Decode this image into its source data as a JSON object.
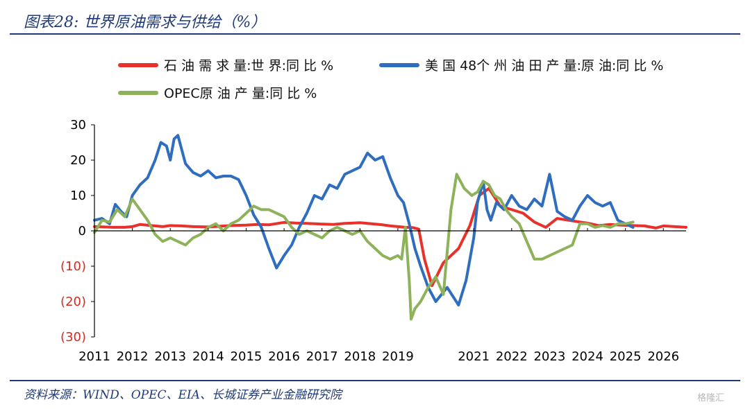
{
  "title": "图表28:  世界原油需求与供给（%）",
  "source": "资料来源：WIND、OPEC、EIA、长城证券产业金融研究院",
  "watermark": "格隆汇",
  "colors": {
    "accent": "#1f3a78",
    "demand": "#e8312a",
    "us_production": "#2f6dbf",
    "opec_production": "#8db25a",
    "negative_tick": "#d42b1f"
  },
  "chart_data": {
    "type": "line",
    "title": "图表28:  世界原油需求与供给（%）",
    "xlabel": "",
    "ylabel": "",
    "ylim": [
      -30,
      30
    ],
    "yticks": [
      {
        "value": 30,
        "label": "30"
      },
      {
        "value": 20,
        "label": "20"
      },
      {
        "value": 10,
        "label": "10"
      },
      {
        "value": 0,
        "label": "0"
      },
      {
        "value": -10,
        "label": "(10)"
      },
      {
        "value": -20,
        "label": "(20)"
      },
      {
        "value": -30,
        "label": "(30)"
      }
    ],
    "xlim": [
      2011.0,
      2026.6
    ],
    "xticks": [
      {
        "value": 2011,
        "label": "2011"
      },
      {
        "value": 2012,
        "label": "2012"
      },
      {
        "value": 2013,
        "label": "2013"
      },
      {
        "value": 2014,
        "label": "2014"
      },
      {
        "value": 2015,
        "label": "2015"
      },
      {
        "value": 2016,
        "label": "2016"
      },
      {
        "value": 2017,
        "label": "2017"
      },
      {
        "value": 2018,
        "label": "2018"
      },
      {
        "value": 2019,
        "label": "2019"
      },
      {
        "value": 2021,
        "label": "2021"
      },
      {
        "value": 2022,
        "label": "2022"
      },
      {
        "value": 2023,
        "label": "2023"
      },
      {
        "value": 2024,
        "label": "2024"
      },
      {
        "value": 2025,
        "label": "2025"
      },
      {
        "value": 2026,
        "label": "2026"
      }
    ],
    "grid": false,
    "legend_position": "top",
    "series": [
      {
        "name": "石 油 需 求 量:世 界:同 比 %",
        "color": "#e8312a",
        "x": [
          2011.0,
          2011.5,
          2011.8,
          2012.0,
          2012.2,
          2012.5,
          2012.8,
          2013.0,
          2013.3,
          2013.6,
          2014.0,
          2014.3,
          2014.6,
          2015.0,
          2015.3,
          2015.6,
          2016.0,
          2016.3,
          2016.6,
          2017.0,
          2017.3,
          2017.6,
          2018.0,
          2018.3,
          2018.6,
          2018.8,
          2019.0,
          2019.2,
          2019.4,
          2019.55,
          2019.7,
          2019.9,
          2020.2,
          2020.6,
          2020.9,
          2021.15,
          2021.4,
          2021.7,
          2022.0,
          2022.3,
          2022.6,
          2022.9,
          2023.2,
          2023.5,
          2023.8,
          2024.0,
          2024.3,
          2024.6,
          2024.9,
          2025.2,
          2025.5,
          2025.8,
          2026.0,
          2026.3,
          2026.6
        ],
        "y": [
          1.2,
          1.0,
          1.0,
          1.2,
          1.8,
          1.5,
          1.2,
          1.5,
          1.4,
          1.2,
          1.1,
          1.3,
          1.5,
          1.6,
          1.8,
          1.7,
          2.4,
          2.2,
          2.1,
          1.9,
          1.8,
          2.1,
          2.3,
          2.0,
          1.7,
          1.4,
          1.2,
          1.0,
          0.9,
          0.5,
          -8,
          -15.5,
          -9,
          -5,
          1.5,
          10,
          12,
          7,
          6,
          5,
          2.5,
          1,
          3.5,
          3,
          2.5,
          2.2,
          1.5,
          1.8,
          1.6,
          1.5,
          1.4,
          0.8,
          1.4,
          1.2,
          1.0
        ]
      },
      {
        "name": "美 国 48个 州 油 田 产 量:原 油:同 比 %",
        "color": "#2f6dbf",
        "x": [
          2011.0,
          2011.2,
          2011.4,
          2011.55,
          2011.7,
          2011.85,
          2012.0,
          2012.2,
          2012.4,
          2012.6,
          2012.75,
          2012.9,
          2013.0,
          2013.1,
          2013.2,
          2013.4,
          2013.6,
          2013.8,
          2014.0,
          2014.2,
          2014.4,
          2014.6,
          2014.8,
          2015.0,
          2015.2,
          2015.4,
          2015.6,
          2015.8,
          2016.0,
          2016.2,
          2016.4,
          2016.6,
          2016.8,
          2017.0,
          2017.2,
          2017.4,
          2017.6,
          2017.8,
          2018.0,
          2018.2,
          2018.4,
          2018.6,
          2018.8,
          2019.0,
          2019.15,
          2019.3,
          2019.45,
          2019.6,
          2019.8,
          2020.0,
          2020.3,
          2020.6,
          2020.8,
          2021.0,
          2021.1,
          2021.25,
          2021.35,
          2021.45,
          2021.6,
          2021.8,
          2022.0,
          2022.2,
          2022.4,
          2022.6,
          2022.8,
          2023.0,
          2023.2,
          2023.4,
          2023.6,
          2023.8,
          2024.0,
          2024.2,
          2024.4,
          2024.6,
          2024.8,
          2025.0,
          2025.2
        ],
        "y": [
          3,
          3.5,
          2,
          7.5,
          5.5,
          4,
          10,
          13,
          15,
          20,
          25,
          24,
          20,
          26,
          27,
          19,
          16.5,
          15.5,
          17,
          15,
          15.5,
          15.5,
          14.5,
          10,
          4.5,
          1,
          -5,
          -10.5,
          -7,
          -4,
          1,
          5,
          10,
          9,
          13,
          12,
          16,
          17,
          18,
          22,
          20,
          21,
          15,
          10,
          8,
          2,
          -5,
          -10,
          -16,
          -20,
          -16,
          -21,
          -14,
          -2,
          8,
          14,
          6,
          3,
          8,
          6,
          10,
          7,
          6,
          9,
          7,
          16,
          5.5,
          4,
          3,
          7,
          10,
          8,
          7,
          8,
          3,
          2,
          1
        ]
      },
      {
        "name": "OPEC原 油 产 量:同 比 %",
        "color": "#8db25a",
        "x": [
          2011.0,
          2011.2,
          2011.4,
          2011.6,
          2011.8,
          2012.0,
          2012.2,
          2012.4,
          2012.6,
          2012.8,
          2013.0,
          2013.2,
          2013.4,
          2013.6,
          2013.8,
          2014.0,
          2014.2,
          2014.4,
          2014.6,
          2014.8,
          2015.0,
          2015.2,
          2015.4,
          2015.6,
          2015.8,
          2016.0,
          2016.2,
          2016.4,
          2016.6,
          2016.8,
          2017.0,
          2017.2,
          2017.4,
          2017.6,
          2017.8,
          2018.0,
          2018.2,
          2018.4,
          2018.6,
          2018.8,
          2019.0,
          2019.1,
          2019.2,
          2019.3,
          2019.35,
          2019.45,
          2019.6,
          2019.8,
          2020.0,
          2020.2,
          2020.4,
          2020.55,
          2020.75,
          2020.95,
          2021.1,
          2021.25,
          2021.4,
          2021.55,
          2021.7,
          2021.85,
          2022.0,
          2022.2,
          2022.4,
          2022.6,
          2022.8,
          2023.0,
          2023.2,
          2023.4,
          2023.6,
          2023.8,
          2024.0,
          2024.2,
          2024.4,
          2024.6,
          2024.8,
          2025.0,
          2025.2
        ],
        "y": [
          -0.5,
          3,
          2.5,
          6,
          4,
          9,
          6,
          3,
          -1,
          -3,
          -2,
          -3,
          -4,
          -2,
          -1,
          1,
          2,
          0,
          2,
          3,
          5,
          7,
          6,
          6,
          5,
          4,
          1,
          -1,
          0,
          -1,
          -2,
          0,
          1,
          0,
          -1,
          0,
          -3,
          -5,
          -7,
          -8,
          -7,
          -8,
          1,
          -14,
          -25,
          -22,
          -20,
          -16,
          -13,
          -18,
          6,
          16,
          12,
          10,
          11,
          14,
          13,
          10,
          9,
          6,
          4,
          2,
          -3,
          -8,
          -8,
          -7,
          -6,
          -5,
          -4,
          2,
          2,
          1,
          1.5,
          1,
          2,
          2,
          2.5
        ]
      }
    ]
  }
}
